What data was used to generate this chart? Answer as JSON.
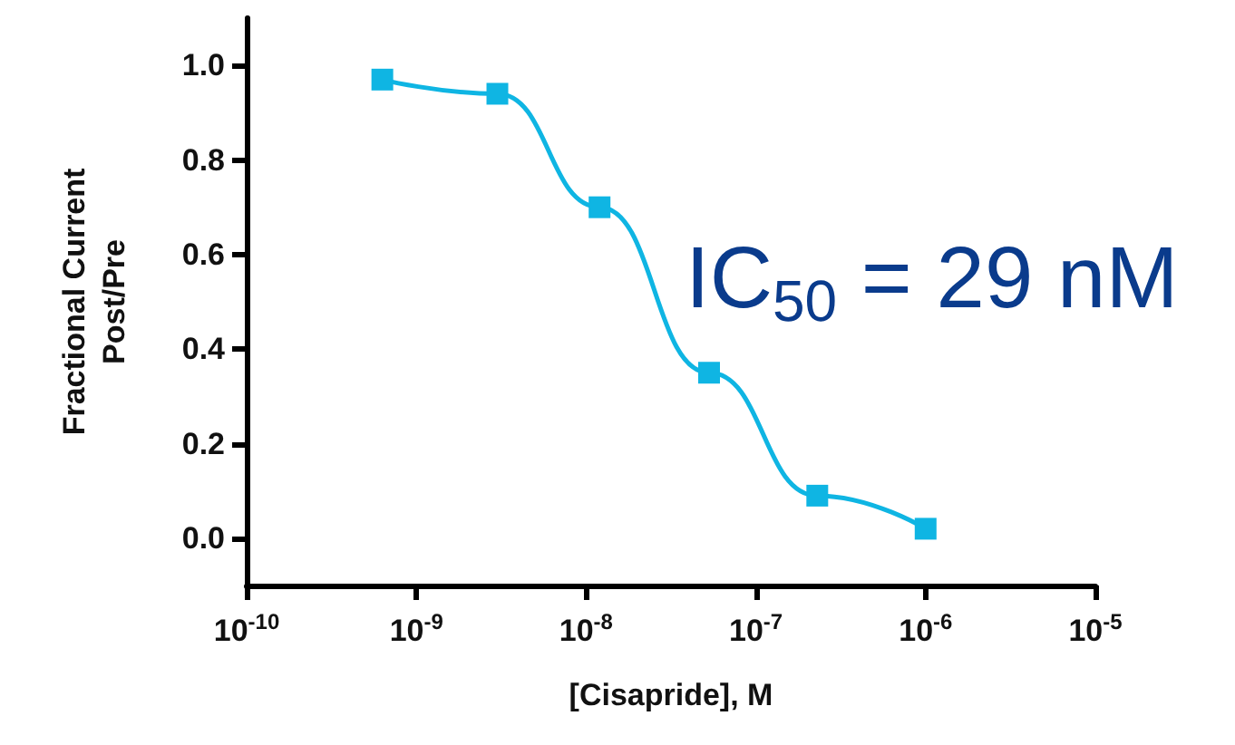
{
  "chart_data": {
    "type": "line",
    "xlabel": "[Cisapride], M",
    "ylabel": "Fractional Current\nPost/Pre",
    "x": [
      6.3e-10,
      3e-09,
      1.2e-08,
      5.3e-08,
      2.3e-07,
      1e-06
    ],
    "series": [
      {
        "color": "#0fb5e3",
        "values": [
          0.97,
          0.94,
          0.7,
          0.35,
          0.09,
          0.02
        ]
      }
    ],
    "log": "x",
    "marker": "square",
    "line_style": "solid",
    "grid": false,
    "xlim": [
      1e-10,
      1e-05
    ],
    "xticks": [
      {
        "value": 1e-10,
        "label": "10$^{-10}$"
      },
      {
        "value": 1e-09,
        "label": "10$^{-9}$"
      },
      {
        "value": 1e-08,
        "label": "10$^{-8}$"
      },
      {
        "value": 1e-07,
        "label": "10$^{-7}$"
      },
      {
        "value": 1e-06,
        "label": "10$^{-6}$"
      },
      {
        "value": 1e-05,
        "label": "10$^{-5}$"
      }
    ],
    "ylim": [
      -0.1,
      1.1
    ],
    "yticks": [
      {
        "value": 0,
        "label": "0.0"
      },
      {
        "value": 0.2,
        "label": "0.2"
      },
      {
        "value": 0.4,
        "label": "0.4"
      },
      {
        "value": 0.6,
        "label": "0.6"
      },
      {
        "value": 0.8,
        "label": "0.8"
      },
      {
        "value": 1,
        "label": "1.0"
      }
    ],
    "annotations": [
      "IC$_{50}$ = 29 nM"
    ]
  }
}
